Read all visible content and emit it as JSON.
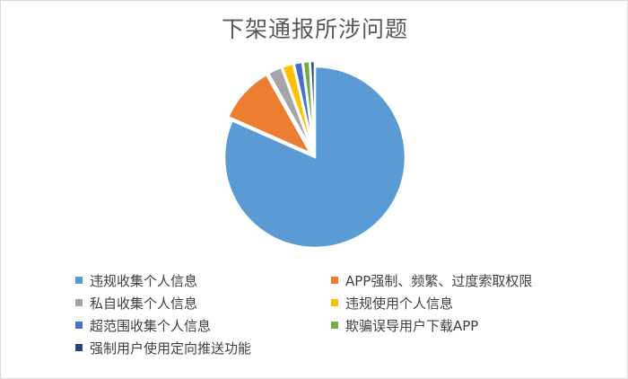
{
  "chart_data": {
    "type": "pie",
    "title": "下架通报所涉问题",
    "categories": [
      "违规收集个人信息",
      "APP强制、频繁、过度索取权限",
      "私自收集个人信息",
      "违规使用个人信息",
      "超范围收集个人信息",
      "欺骗误导用户下载APP",
      "强制用户使用定向推送功能"
    ],
    "values": [
      80,
      10,
      2.5,
      2,
      1.5,
      1.2,
      0.8
    ],
    "colors": [
      "#5b9bd5",
      "#ed7d31",
      "#a5a5a5",
      "#ffc000",
      "#4472c4",
      "#70ad47",
      "#264478"
    ],
    "legend_position": "bottom"
  }
}
